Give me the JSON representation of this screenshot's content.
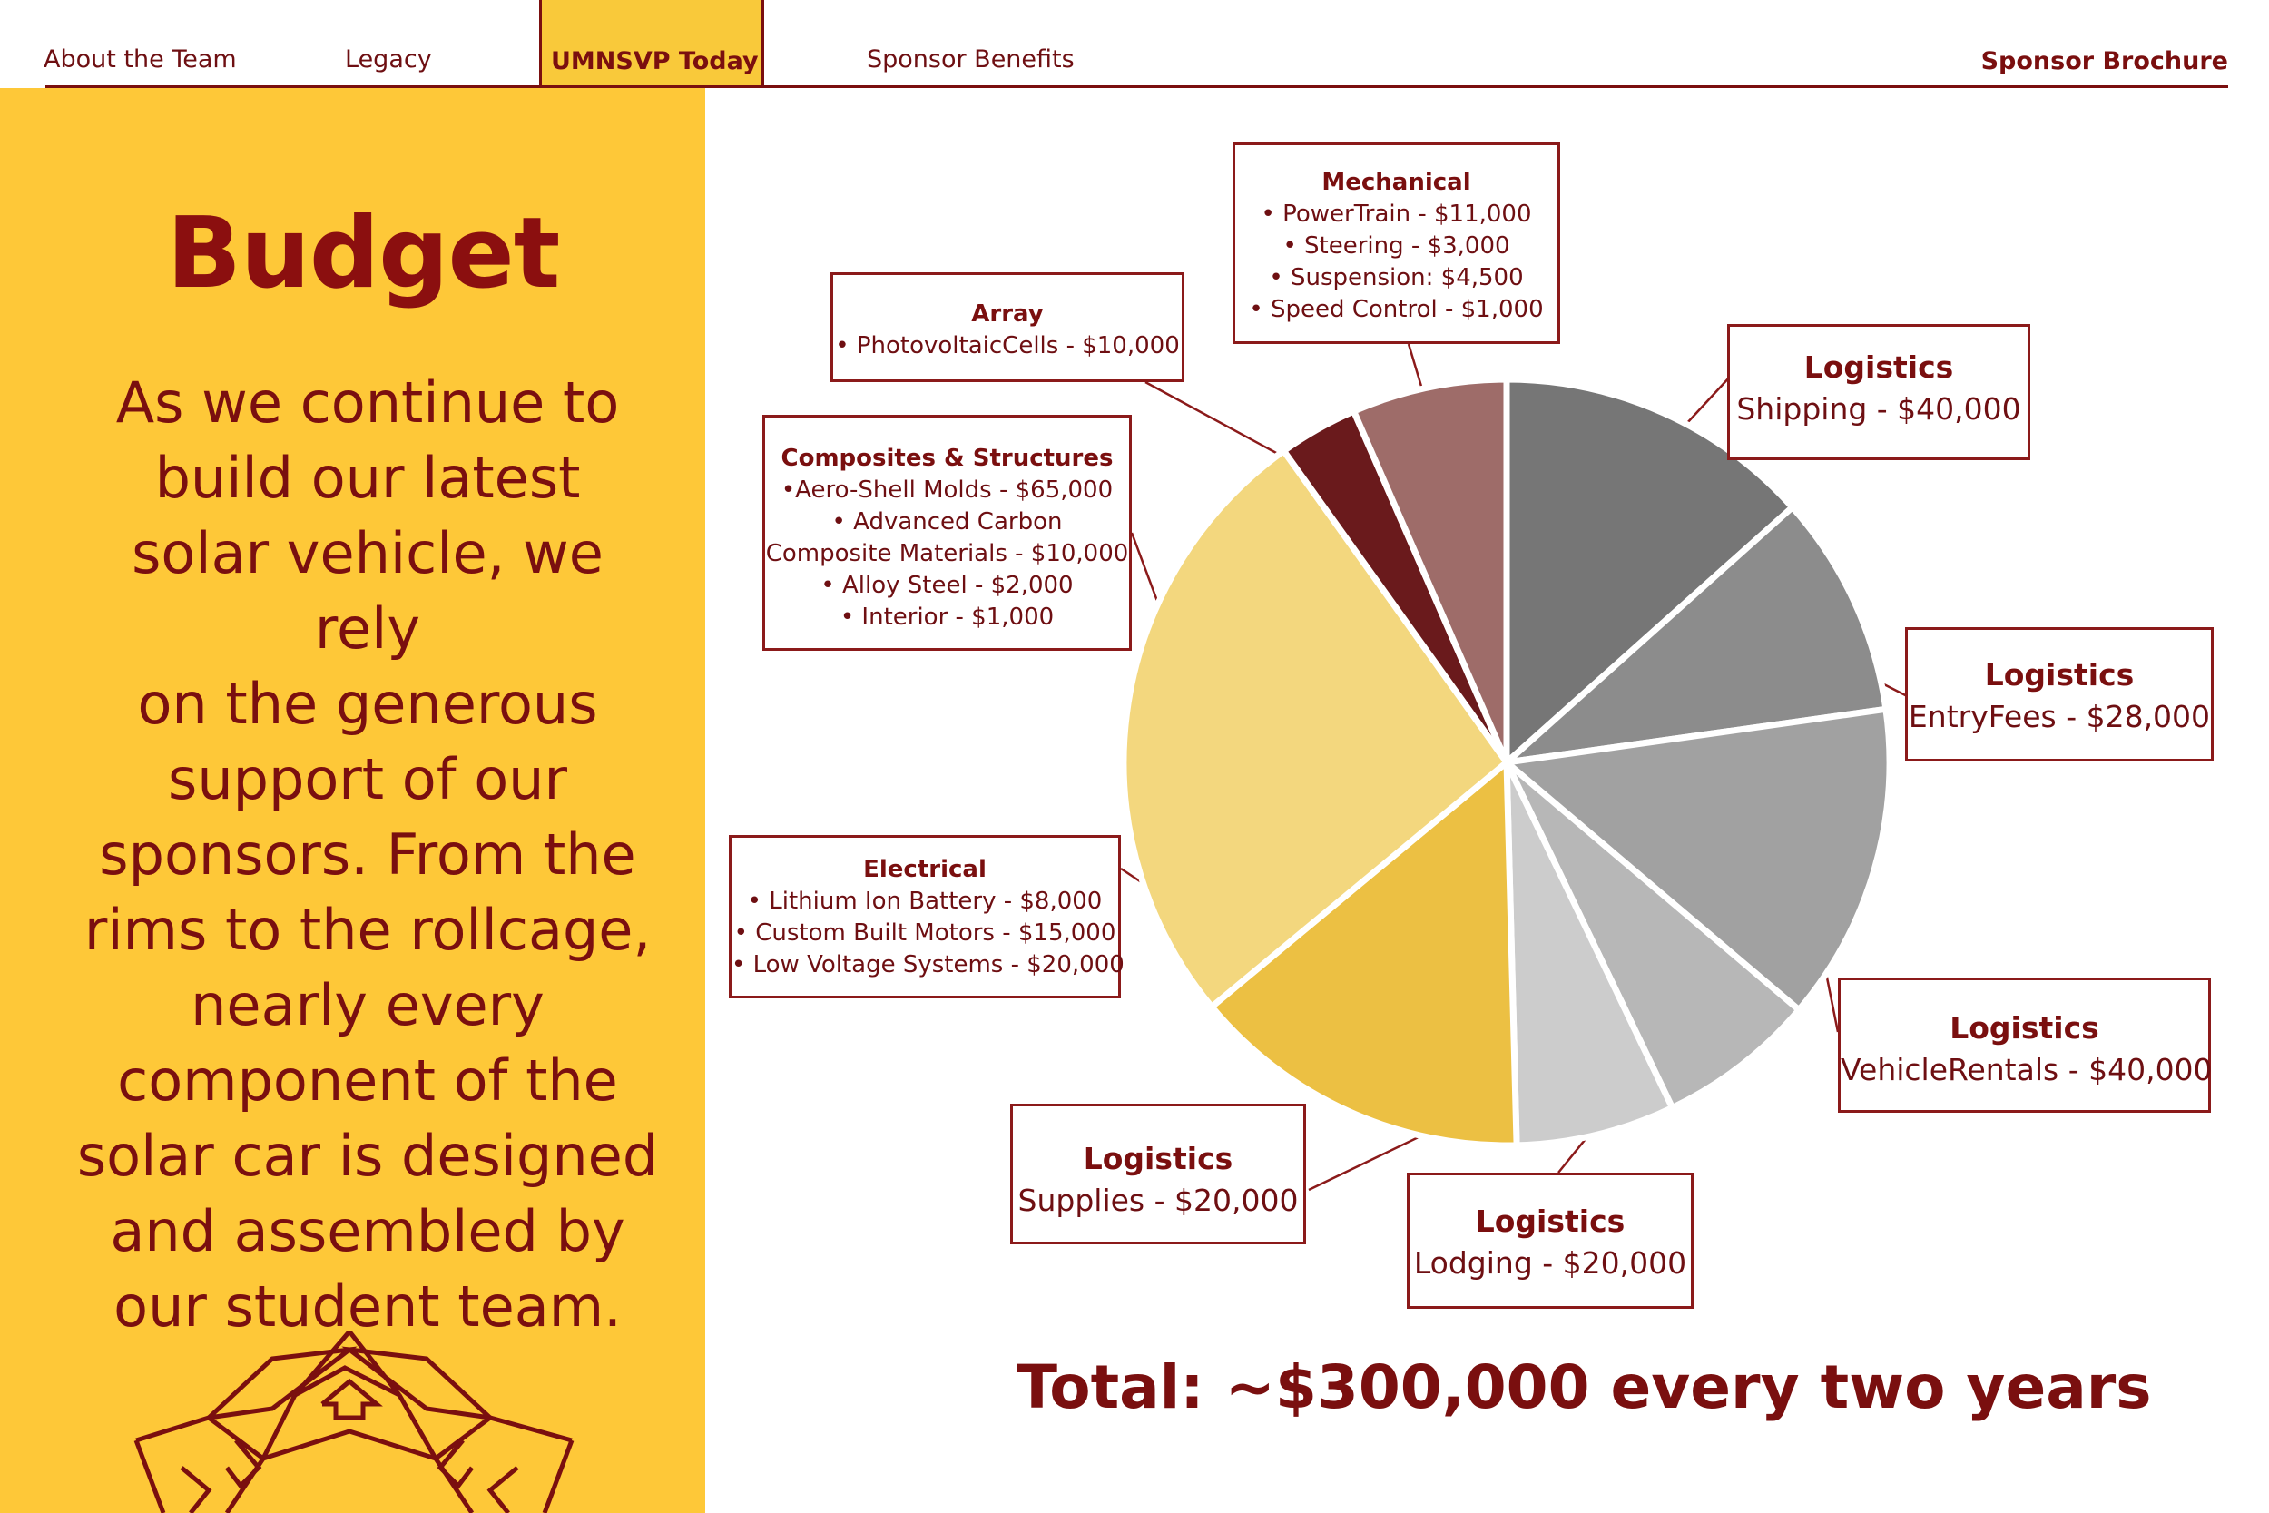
{
  "nav": {
    "items": [
      "About the Team",
      "Legacy",
      "UMNSVP Today",
      "Sponsor Benefits"
    ],
    "active": "UMNSVP Today",
    "right": "Sponsor Brochure"
  },
  "left": {
    "title": "Budget",
    "lines": [
      "As we continue to",
      "build our latest",
      "solar vehicle, we rely",
      "on the generous",
      "support of our",
      "sponsors. From the",
      "rims to the rollcage,",
      "nearly every",
      "component of the",
      "solar car is designed",
      "and assembled by",
      "our student team."
    ]
  },
  "colors": {
    "brand_maroon": "#7a0f0f",
    "brand_gold": "#fec838"
  },
  "chart_data": {
    "type": "pie",
    "title": "",
    "slices": [
      {
        "label": "Logistics",
        "detail": [
          "Shipping - $40,000"
        ],
        "value": 40000,
        "color": "#767676"
      },
      {
        "label": "Logistics",
        "detail": [
          "EntryFees - $28,000"
        ],
        "value": 28000,
        "color": "#8c8c8c"
      },
      {
        "label": "Logistics",
        "detail": [
          "VehicleRentals - $40,000"
        ],
        "value": 40000,
        "color": "#a1a1a1"
      },
      {
        "label": "Logistics",
        "detail": [
          "Lodging - $20,000"
        ],
        "value": 20000,
        "color": "#b7b7b7"
      },
      {
        "label": "Logistics",
        "detail": [
          "Supplies - $20,000"
        ],
        "value": 20000,
        "color": "#cccccc"
      },
      {
        "label": "Electrical",
        "detail": [
          "• Lithium Ion Battery - $8,000",
          "• Custom Built Motors - $15,000",
          "• Low Voltage Systems - $20,000"
        ],
        "value": 43000,
        "color": "#ecc043"
      },
      {
        "label": "Composites & Structures",
        "detail": [
          "•Aero-Shell Molds - $65,000",
          "• Advanced Carbon",
          "Composite Materials - $10,000",
          "• Alloy Steel - $2,000",
          "• Interior - $1,000"
        ],
        "value": 78000,
        "color": "#f3d77e"
      },
      {
        "label": "Array",
        "detail": [
          "• PhotovoltaicCells - $10,000"
        ],
        "value": 10000,
        "color": "#6a1a1c"
      },
      {
        "label": "Mechanical",
        "detail": [
          "• PowerTrain - $11,000",
          "• Steering - $3,000",
          "• Suspension: $4,500",
          "• Speed Control - $1,000"
        ],
        "value": 19500,
        "color": "#9e6c69"
      }
    ],
    "total": "Total: ~$300,000 every two years"
  }
}
